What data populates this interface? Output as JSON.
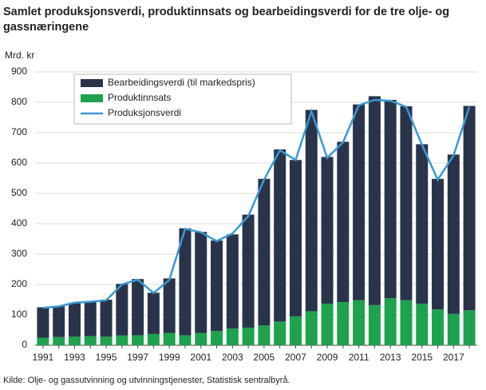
{
  "chart_data": {
    "type": "bar",
    "stacked": true,
    "title": "Samlet produksjonsverdi, produktinnsats og bearbeidingsverdi for de tre olje- og gassnæringene",
    "y_label": "Mrd. kr",
    "source": "Kilde: Olje- og gassutvinning og utvinningstjenester, Statistisk sentralbyrå.",
    "categories": [
      "1991",
      null,
      "1993",
      null,
      "1995",
      null,
      "1997",
      null,
      "1999",
      null,
      "2001",
      null,
      "2003",
      null,
      "2005",
      null,
      "2007",
      null,
      "2009",
      null,
      "2011",
      null,
      "2013",
      null,
      "2015",
      null,
      "2017",
      null
    ],
    "series": [
      {
        "name": "Bearbeidingsverdi (til markedspris)",
        "type": "bar",
        "color": "#29344a",
        "values": [
          100,
          101,
          112,
          113,
          122,
          170,
          185,
          136,
          180,
          352,
          333,
          298,
          310,
          372,
          483,
          567,
          515,
          663,
          483,
          528,
          645,
          688,
          653,
          639,
          525,
          430,
          525,
          673
        ]
      },
      {
        "name": "Produktinnsats",
        "type": "bar",
        "color": "#1ea24e",
        "values": [
          25,
          27,
          28,
          30,
          28,
          32,
          33,
          37,
          40,
          33,
          40,
          47,
          55,
          58,
          65,
          78,
          95,
          112,
          137,
          142,
          148,
          132,
          155,
          148,
          137,
          118,
          103,
          115
        ]
      },
      {
        "name": "Produksjonsverdi",
        "type": "line",
        "color": "#3a98d2",
        "values": [
          123,
          128,
          140,
          143,
          148,
          200,
          216,
          172,
          215,
          383,
          372,
          343,
          368,
          425,
          545,
          642,
          610,
          770,
          617,
          668,
          790,
          808,
          805,
          785,
          660,
          545,
          625,
          785
        ]
      }
    ],
    "ylim": [
      0,
      900
    ],
    "yticks": [
      0,
      100,
      200,
      300,
      400,
      500,
      600,
      700,
      800,
      900
    ],
    "grid": true,
    "legend": "upper left"
  }
}
